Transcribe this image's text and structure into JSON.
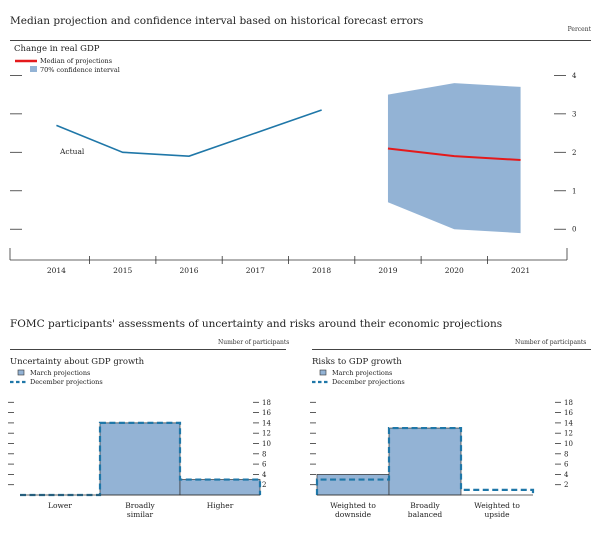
{
  "top": {
    "title": "Median projection and confidence interval based on historical forecast errors",
    "unit": "Percent"
  },
  "bottom": {
    "title": "FOMC participants' assessments of uncertainty and risks around their economic projections",
    "unit_left": "Number of participants",
    "unit_right": "Number of participants"
  },
  "chart_data": [
    {
      "type": "line",
      "title": "Change in real GDP",
      "annotation": "Actual",
      "legend": [
        "Median of projections",
        "70% confidence interval"
      ],
      "x": [
        2014,
        2015,
        2016,
        2017,
        2018,
        2019,
        2020,
        2021
      ],
      "x_tick_labels": [
        "2014",
        "2015",
        "2016",
        "2017",
        "2018",
        "2019",
        "2020",
        "2021"
      ],
      "y_tick_labels": [
        "4",
        "3",
        "2",
        "1",
        "0"
      ],
      "ylim": [
        -0.8,
        4.4
      ],
      "series": [
        {
          "name": "Actual",
          "x": [
            2014,
            2015,
            2016,
            2017,
            2018
          ],
          "values": [
            2.7,
            2.0,
            1.9,
            2.5,
            3.1
          ]
        },
        {
          "name": "Median of projections",
          "x": [
            2019,
            2020,
            2021
          ],
          "values": [
            2.1,
            1.9,
            1.8
          ]
        },
        {
          "name": "70% confidence interval",
          "x": [
            2019,
            2020,
            2021
          ],
          "lower": [
            0.7,
            0.0,
            -0.1
          ],
          "upper": [
            3.5,
            3.8,
            3.7
          ]
        }
      ],
      "colors": {
        "actual": "#1f77a8",
        "median": "#e41a1c",
        "band": "#93b3d5"
      }
    },
    {
      "type": "bar",
      "title": "Uncertainty about GDP growth",
      "legend": [
        "March projections",
        "December projections"
      ],
      "categories": [
        [
          "Lower"
        ],
        [
          "Broadly",
          "similar"
        ],
        [
          "Higher"
        ]
      ],
      "y_tick_labels": [
        "18",
        "16",
        "14",
        "12",
        "10",
        "8",
        "6",
        "4",
        "2"
      ],
      "ylim": [
        0,
        20
      ],
      "series": [
        {
          "name": "March projections",
          "values": [
            0,
            14,
            3
          ]
        },
        {
          "name": "December projections",
          "values": [
            0,
            14,
            3
          ]
        }
      ]
    },
    {
      "type": "bar",
      "title": "Risks to GDP growth",
      "legend": [
        "March projections",
        "December projections"
      ],
      "categories": [
        [
          "Weighted to",
          "downside"
        ],
        [
          "Broadly",
          "balanced"
        ],
        [
          "Weighted to",
          "upside"
        ]
      ],
      "y_tick_labels": [
        "18",
        "16",
        "14",
        "12",
        "10",
        "8",
        "6",
        "4",
        "2"
      ],
      "ylim": [
        0,
        20
      ],
      "series": [
        {
          "name": "March projections",
          "values": [
            4,
            13,
            0
          ]
        },
        {
          "name": "December projections",
          "values": [
            3,
            13,
            1
          ]
        }
      ]
    }
  ]
}
